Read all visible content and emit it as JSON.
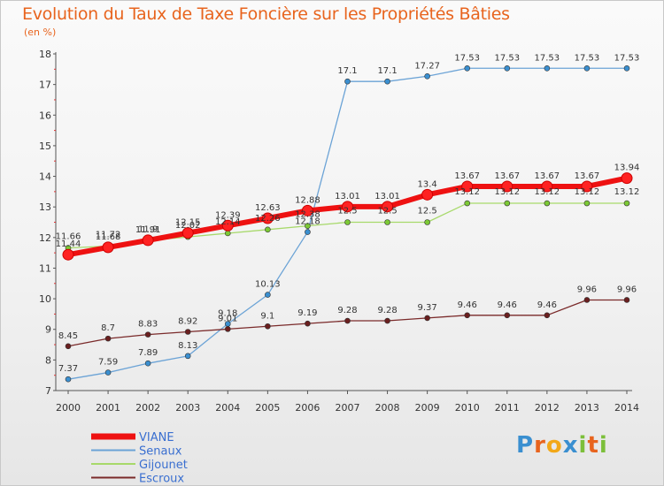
{
  "chart_data": {
    "type": "line",
    "title": "Evolution du Taux de Taxe Foncière sur les Propriétés Bâties",
    "subtitle": "(en %)",
    "ylim": [
      7,
      18
    ],
    "yticks": [
      "7",
      "8",
      "9",
      "10",
      "11",
      "12",
      "13",
      "14",
      "15",
      "16",
      "17",
      "18"
    ],
    "categories": [
      "2000",
      "2001",
      "2002",
      "2003",
      "2004",
      "2005",
      "2006",
      "2007",
      "2008",
      "2009",
      "2010",
      "2011",
      "2012",
      "2013",
      "2014"
    ],
    "series": [
      {
        "name": "VIANE",
        "color": "#ee1111",
        "marker": "#ff2222",
        "values": [
          11.44,
          11.68,
          11.91,
          12.15,
          12.39,
          12.63,
          12.88,
          13.01,
          13.01,
          13.4,
          13.67,
          13.67,
          13.67,
          13.67,
          13.94
        ]
      },
      {
        "name": "Senaux",
        "color": "#6ba3d6",
        "marker": "#3a8fd0",
        "values": [
          7.37,
          7.59,
          7.89,
          8.13,
          9.18,
          10.13,
          12.18,
          17.1,
          17.1,
          17.27,
          17.53,
          17.53,
          17.53,
          17.53,
          17.53
        ]
      },
      {
        "name": "Gijounet",
        "color": "#a7d96a",
        "marker": "#7cc935",
        "values": [
          11.66,
          11.72,
          11.9,
          12.02,
          12.14,
          12.26,
          12.38,
          12.5,
          12.5,
          12.5,
          13.12,
          13.12,
          13.12,
          13.12,
          13.12
        ]
      },
      {
        "name": "Escroux",
        "color": "#7a2a2a",
        "marker": "#6a1f1f",
        "values": [
          8.45,
          8.7,
          8.83,
          8.92,
          9.01,
          9.1,
          9.19,
          9.28,
          9.28,
          9.37,
          9.46,
          9.46,
          9.46,
          9.96,
          9.96
        ]
      }
    ],
    "data_labels": {
      "VIANE": [
        "11.44",
        "11.68",
        "11.91",
        "12.15",
        "12.39",
        "12.63",
        "12.88",
        "13.01",
        "13.01",
        "13.4",
        "13.67",
        "13.67",
        "13.67",
        "13.67",
        "13.94"
      ],
      "Senaux": [
        "7.37",
        "7.59",
        "7.89",
        "8.13",
        "9.18",
        "10.13",
        "12.18",
        "17.1",
        "17.1",
        "17.27",
        "17.53",
        "17.53",
        "17.53",
        "17.53",
        "17.53"
      ],
      "Gijounet": [
        "11.66",
        "11.72",
        "11.9",
        "12.02",
        "12.14",
        "12.26",
        "12.38",
        "12.5",
        "12.5",
        "12.5",
        "13.12",
        "13.12",
        "13.12",
        "13.12",
        "13.12"
      ],
      "Escroux": [
        "8.45",
        "8.7",
        "8.83",
        "8.92",
        "9.01",
        "9.1",
        "9.19",
        "9.28",
        "9.28",
        "9.37",
        "9.46",
        "9.46",
        "9.46",
        "9.96",
        "9.96"
      ]
    },
    "legend": [
      "VIANE",
      "Senaux",
      "Gijounet",
      "Escroux"
    ]
  },
  "logo": {
    "text": "Proxiti",
    "letters": [
      "P",
      "r",
      "o",
      "x",
      "i",
      "t",
      "i"
    ]
  }
}
